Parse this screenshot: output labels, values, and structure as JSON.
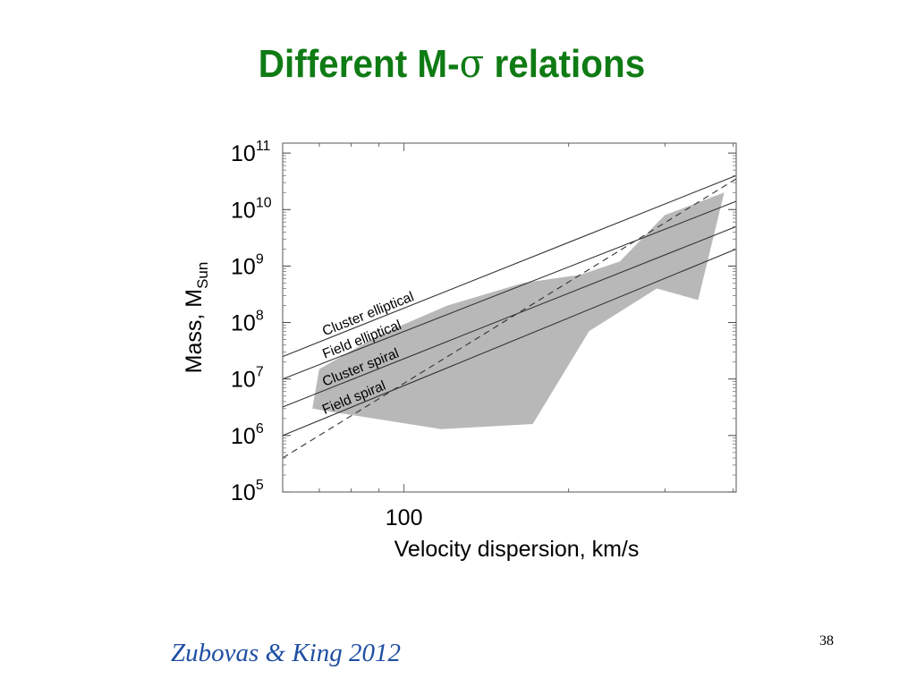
{
  "slide": {
    "title_prefix": "Different M-",
    "title_symbol": "σ",
    "title_suffix": " relations",
    "citation": "Zubovas & King 2012",
    "page_number": "38"
  },
  "chart_data": {
    "type": "line",
    "xlabel": "Velocity dispersion, km/s",
    "ylabel": "Mass, M",
    "ylabel_subscript": "Sun",
    "x_scale": "log",
    "y_scale": "log",
    "xlim": [
      60,
      405
    ],
    "ylim": [
      100000,
      150000000000
    ],
    "x_ticks": [
      {
        "value": 100,
        "label": "100"
      }
    ],
    "y_ticks": [
      {
        "value": 100000,
        "base": "10",
        "exp": "5"
      },
      {
        "value": 1000000,
        "base": "10",
        "exp": "6"
      },
      {
        "value": 10000000,
        "base": "10",
        "exp": "7"
      },
      {
        "value": 100000000,
        "base": "10",
        "exp": "8"
      },
      {
        "value": 1000000000,
        "base": "10",
        "exp": "9"
      },
      {
        "value": 10000000000,
        "base": "10",
        "exp": "10"
      },
      {
        "value": 100000000000,
        "base": "10",
        "exp": "11"
      }
    ],
    "series": [
      {
        "name": "Cluster elliptical",
        "style": "solid",
        "x": [
          60,
          405
        ],
        "y": [
          25000000,
          40000000000
        ]
      },
      {
        "name": "Field elliptical",
        "style": "solid",
        "x": [
          60,
          405
        ],
        "y": [
          10000000,
          14000000000
        ]
      },
      {
        "name": "Cluster spiral",
        "style": "solid",
        "x": [
          60,
          405
        ],
        "y": [
          3200000,
          5000000000
        ]
      },
      {
        "name": "Field spiral",
        "style": "solid",
        "x": [
          60,
          405
        ],
        "y": [
          1000000,
          2000000000
        ]
      },
      {
        "name": "",
        "style": "dashed",
        "x": [
          60,
          405
        ],
        "y": [
          400000,
          35000000000
        ]
      }
    ],
    "observed_region": {
      "color": "#b8b8b8",
      "points": [
        [
          68,
          3000000
        ],
        [
          76,
          2500000
        ],
        [
          117,
          1300000
        ],
        [
          172,
          1600000
        ],
        [
          218,
          70000000
        ],
        [
          290,
          400000000
        ],
        [
          345,
          250000000
        ],
        [
          385,
          20000000000
        ],
        [
          300,
          8000000000
        ],
        [
          248,
          1200000000
        ],
        [
          210,
          700000000
        ],
        [
          165,
          500000000
        ],
        [
          120,
          200000000
        ],
        [
          90,
          60000000
        ],
        [
          70,
          15000000
        ]
      ]
    }
  }
}
